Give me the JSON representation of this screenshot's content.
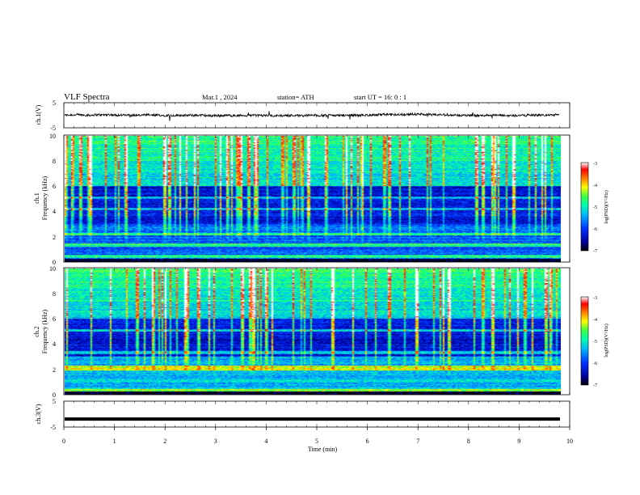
{
  "header": {
    "title": "VLF  Spectra",
    "date": "Mar.1  , 2024",
    "station": "station= ATH",
    "start": "start  UT  =   16: 0   : 1"
  },
  "chart_data": [
    {
      "type": "line",
      "panel": "ch1_waveform",
      "ylabel": "ch.1(V)",
      "ylim": [
        -5,
        5
      ],
      "yticks": [
        "5",
        "-5"
      ],
      "x_range_min": [
        0,
        9.8
      ],
      "series_note": "noisy waveform near 0 V"
    },
    {
      "type": "heatmap",
      "panel": "ch1_spectrogram",
      "ylabel": "Frequency (kHz)",
      "channel_label": "ch.1",
      "ylim": [
        0,
        10
      ],
      "yticks": [
        "0",
        "2",
        "4",
        "6",
        "8",
        "10"
      ],
      "colorbar": {
        "label": "log(PSD)(V²/Hz)",
        "ticks": [
          "-3",
          "-4",
          "-5",
          "-6",
          "-7"
        ],
        "range": [
          -7,
          -3
        ]
      },
      "dominant_bands_khz": [
        0.4,
        1.3,
        2.2,
        4.2,
        5.1
      ]
    },
    {
      "type": "heatmap",
      "panel": "ch2_spectrogram",
      "ylabel": "Frequency (kHz)",
      "channel_label": "ch.2",
      "ylim": [
        0,
        10
      ],
      "yticks": [
        "0",
        "2",
        "4",
        "6",
        "8",
        "10"
      ],
      "colorbar": {
        "label": "log(PSD)(V²/Hz)",
        "ticks": [
          "-3",
          "-4",
          "-5",
          "-6",
          "-7"
        ],
        "range": [
          -7,
          -3
        ]
      },
      "dominant_bands_khz": [
        0.3,
        2.0,
        2.2,
        3.3,
        5.1
      ]
    },
    {
      "type": "line",
      "panel": "ch3_waveform",
      "ylabel": "ch.3(V)",
      "ylim": [
        -5,
        5
      ],
      "yticks": [
        "5",
        "-5"
      ],
      "series_note": "flat thick trace near -2 V",
      "level_v": -1.9
    }
  ],
  "x_axis": {
    "label": "Time  (min)",
    "range": [
      0,
      10
    ],
    "ticks": [
      "0",
      "1",
      "2",
      "3",
      "4",
      "5",
      "6",
      "7",
      "8",
      "9",
      "10"
    ]
  },
  "colors": {
    "trace": "#000000",
    "colormap": [
      "#000000",
      "#0000a0",
      "#0030ff",
      "#00b0ff",
      "#00ffb0",
      "#40ff40",
      "#ffff00",
      "#ff8000",
      "#ff0000",
      "#ffffff"
    ]
  }
}
